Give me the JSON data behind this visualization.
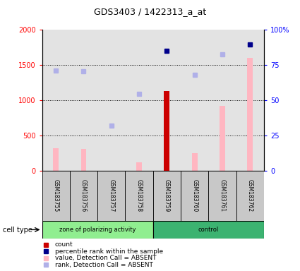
{
  "title": "GDS3403 / 1422313_a_at",
  "samples": [
    "GSM183755",
    "GSM183756",
    "GSM183757",
    "GSM183758",
    "GSM183759",
    "GSM183760",
    "GSM183761",
    "GSM183762"
  ],
  "count_values": [
    null,
    null,
    null,
    null,
    1130,
    null,
    null,
    null
  ],
  "count_color": "#CC0000",
  "value_absent_bars": [
    320,
    310,
    null,
    120,
    null,
    250,
    920,
    1600
  ],
  "value_absent_color": "#FFB6C1",
  "rank_absent_dots": [
    1420,
    1415,
    640,
    1090,
    null,
    1360,
    1650,
    null
  ],
  "rank_absent_color": "#B0B0E8",
  "percentile_dots_pct": [
    null,
    null,
    null,
    null,
    85,
    null,
    null,
    89.5
  ],
  "percentile_color": "#00008B",
  "ylim_left": [
    0,
    2000
  ],
  "ylim_right": [
    0,
    100
  ],
  "left_yticks": [
    0,
    500,
    1000,
    1500,
    2000
  ],
  "right_yticks": [
    0,
    25,
    50,
    75,
    100
  ],
  "right_yticklabels": [
    "0",
    "25",
    "50",
    "75",
    "100%"
  ],
  "grid_values": [
    500,
    1000,
    1500
  ],
  "group1_label": "zone of polarizing activity",
  "group1_color": "#90EE90",
  "group2_label": "control",
  "group2_color": "#3CB371",
  "legend_items": [
    {
      "label": "count",
      "color": "#CC0000"
    },
    {
      "label": "percentile rank within the sample",
      "color": "#00008B"
    },
    {
      "label": "value, Detection Call = ABSENT",
      "color": "#FFB6C1"
    },
    {
      "label": "rank, Detection Call = ABSENT",
      "color": "#B0B0E8"
    }
  ],
  "col_bg_color": "#C8C8C8",
  "plot_bg": "white"
}
